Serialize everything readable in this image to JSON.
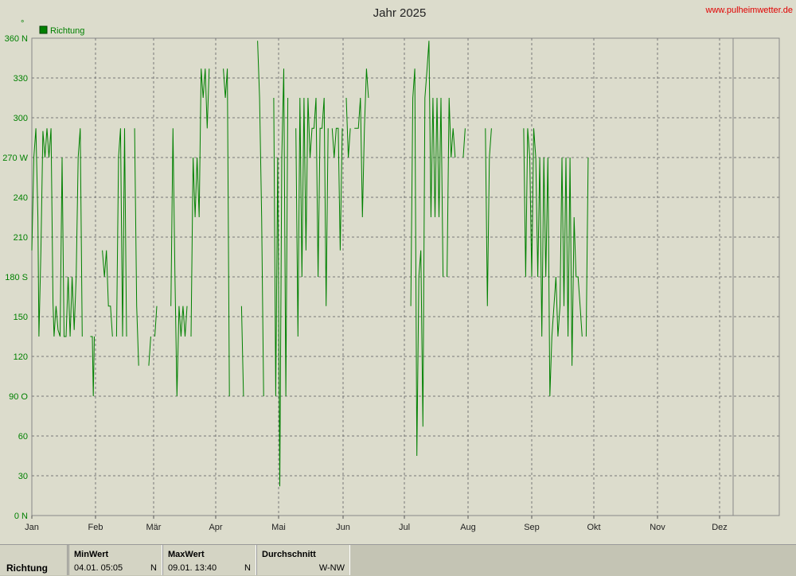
{
  "header": {
    "title": "Jahr 2025",
    "site": "www.pulheimwetter.de",
    "unit_mark": "°"
  },
  "legend": {
    "label": "Richtung",
    "color": "#008000"
  },
  "chart_data": {
    "type": "line",
    "title": "Jahr 2025",
    "xlabel": "",
    "ylabel": "",
    "ylim": [
      0,
      360
    ],
    "y_ticks": [
      "0  N",
      "30",
      "60",
      "90  O",
      "120",
      "150",
      "180 S",
      "210",
      "240",
      "270 W",
      "300",
      "330",
      "360 N"
    ],
    "x_ticks": [
      "Jan",
      "Feb",
      "Mär",
      "Apr",
      "Mai",
      "Jun",
      "Jul",
      "Aug",
      "Sep",
      "Okt",
      "Nov",
      "Dez"
    ],
    "grid": true,
    "series": [
      {
        "name": "Richtung",
        "color": "#008000",
        "points": [
          [
            0.0,
            200
          ],
          [
            1.0,
            270
          ],
          [
            2.0,
            292
          ],
          [
            3.0,
            225
          ],
          [
            3.5,
            135
          ],
          [
            4.5,
            200
          ],
          [
            5.5,
            290
          ],
          [
            6.5,
            270
          ],
          [
            7.5,
            292
          ],
          [
            8.5,
            270
          ],
          [
            9.5,
            292
          ],
          [
            10.5,
            160
          ],
          [
            11.0,
            135
          ],
          [
            12.0,
            158
          ],
          [
            13.0,
            140
          ],
          [
            14.0,
            135
          ],
          [
            15.0,
            270
          ],
          [
            16.0,
            135
          ],
          [
            17.0,
            135
          ],
          [
            18.0,
            180
          ],
          [
            19.0,
            135
          ],
          [
            20.0,
            180
          ],
          [
            21.0,
            140
          ],
          [
            22.0,
            180
          ],
          [
            23.0,
            270
          ],
          [
            24.0,
            292
          ],
          [
            25.0,
            135
          ],
          [
            27.0,
            135
          ],
          [
            29.0,
            135
          ],
          [
            30.0,
            135
          ],
          [
            30.5,
            90
          ],
          [
            31.0,
            135
          ],
          [
            33.0,
            135
          ],
          [
            35.0,
            200
          ],
          [
            36.0,
            180
          ],
          [
            37.0,
            200
          ],
          [
            38.0,
            158
          ],
          [
            39.0,
            158
          ],
          [
            40.0,
            135
          ],
          [
            42.0,
            135
          ],
          [
            43.0,
            270
          ],
          [
            44.0,
            292
          ],
          [
            45.0,
            135
          ],
          [
            46.0,
            292
          ],
          [
            47.0,
            135
          ],
          [
            51.0,
            292
          ],
          [
            52.0,
            158
          ],
          [
            53.0,
            113
          ],
          [
            58.0,
            113
          ],
          [
            59.0,
            135
          ],
          [
            61.0,
            135
          ],
          [
            62.0,
            158
          ],
          [
            69.0,
            158
          ],
          [
            70.0,
            292
          ],
          [
            71.0,
            180
          ],
          [
            72.0,
            90
          ],
          [
            73.0,
            158
          ],
          [
            74.0,
            135
          ],
          [
            75.0,
            158
          ],
          [
            76.0,
            135
          ],
          [
            77.0,
            158
          ],
          [
            79.0,
            135
          ],
          [
            80.0,
            270
          ],
          [
            81.0,
            225
          ],
          [
            82.0,
            270
          ],
          [
            83.0,
            225
          ],
          [
            84.0,
            337
          ],
          [
            85.0,
            315
          ],
          [
            86.0,
            337
          ],
          [
            87.0,
            292
          ],
          [
            88.0,
            337
          ],
          [
            95.0,
            337
          ],
          [
            96.0,
            315
          ],
          [
            97.0,
            337
          ],
          [
            98.0,
            90
          ],
          [
            104.0,
            158
          ],
          [
            105.0,
            90
          ],
          [
            108.0,
            158
          ],
          [
            110.0,
            90
          ],
          [
            112.0,
            358
          ],
          [
            113.0,
            315
          ],
          [
            114.0,
            225
          ],
          [
            115.0,
            90
          ],
          [
            118.0,
            90
          ],
          [
            120.0,
            315
          ],
          [
            121.0,
            90
          ],
          [
            122.0,
            270
          ],
          [
            123.0,
            22
          ],
          [
            124.0,
            270
          ],
          [
            125.0,
            337
          ],
          [
            126.0,
            90
          ],
          [
            127.0,
            315
          ],
          [
            129.0,
            292
          ],
          [
            131.0,
            292
          ],
          [
            132.0,
            135
          ],
          [
            133.0,
            315
          ],
          [
            134.0,
            180
          ],
          [
            135.0,
            315
          ],
          [
            136.0,
            200
          ],
          [
            137.0,
            315
          ],
          [
            138.0,
            270
          ],
          [
            139.0,
            292
          ],
          [
            140.0,
            292
          ],
          [
            141.0,
            315
          ],
          [
            142.0,
            180
          ],
          [
            143.0,
            292
          ],
          [
            144.0,
            292
          ],
          [
            145.0,
            315
          ],
          [
            146.0,
            158
          ],
          [
            147.0,
            292
          ],
          [
            149.0,
            292
          ],
          [
            150.0,
            270
          ],
          [
            151.0,
            292
          ],
          [
            152.0,
            292
          ],
          [
            153.0,
            200
          ],
          [
            154.0,
            292
          ],
          [
            156.0,
            315
          ],
          [
            157.0,
            270
          ],
          [
            158.0,
            292
          ],
          [
            160.0,
            292
          ],
          [
            161.0,
            292
          ],
          [
            162.0,
            292
          ],
          [
            163.0,
            315
          ],
          [
            164.0,
            225
          ],
          [
            165.0,
            292
          ],
          [
            166.0,
            337
          ],
          [
            167.0,
            315
          ],
          [
            170.0,
            315
          ],
          [
            172.0,
            315
          ],
          [
            184.0,
            315
          ],
          [
            186.0,
            315
          ],
          [
            188.0,
            158
          ],
          [
            189.0,
            315
          ],
          [
            190.0,
            337
          ],
          [
            191.0,
            45
          ],
          [
            192.0,
            180
          ],
          [
            193.0,
            200
          ],
          [
            194.0,
            67
          ],
          [
            195.0,
            315
          ],
          [
            196.0,
            335
          ],
          [
            197.0,
            358
          ],
          [
            198.0,
            225
          ],
          [
            199.0,
            315
          ],
          [
            200.0,
            225
          ],
          [
            201.0,
            315
          ],
          [
            202.0,
            225
          ],
          [
            203.0,
            315
          ],
          [
            204.0,
            180
          ],
          [
            206.0,
            180
          ],
          [
            207.0,
            315
          ],
          [
            208.0,
            270
          ],
          [
            209.0,
            292
          ],
          [
            210.0,
            270
          ],
          [
            214.0,
            270
          ],
          [
            215.0,
            292
          ],
          [
            225.0,
            292
          ],
          [
            226.0,
            158
          ],
          [
            227.0,
            270
          ],
          [
            228.0,
            292
          ],
          [
            244.0,
            292
          ],
          [
            245.0,
            180
          ],
          [
            246.0,
            292
          ],
          [
            247.0,
            270
          ],
          [
            248.0,
            180
          ],
          [
            249.0,
            292
          ],
          [
            250.0,
            270
          ],
          [
            251.0,
            180
          ],
          [
            252.0,
            270
          ],
          [
            253.0,
            135
          ],
          [
            254.0,
            270
          ],
          [
            255.0,
            180
          ],
          [
            256.0,
            270
          ],
          [
            257.0,
            90
          ],
          [
            258.0,
            135
          ],
          [
            259.0,
            158
          ],
          [
            260.0,
            180
          ],
          [
            261.0,
            135
          ],
          [
            262.0,
            158
          ],
          [
            263.0,
            270
          ],
          [
            264.0,
            158
          ],
          [
            265.0,
            270
          ],
          [
            266.0,
            135
          ],
          [
            267.0,
            270
          ],
          [
            268.0,
            113
          ],
          [
            269.0,
            225
          ],
          [
            270.0,
            180
          ],
          [
            271.0,
            180
          ],
          [
            272.0,
            158
          ],
          [
            273.0,
            135
          ],
          [
            275.0,
            135
          ],
          [
            276.0,
            270
          ]
        ]
      }
    ]
  },
  "footer": {
    "row_label": "Richtung",
    "min": {
      "header": "MinWert",
      "value": "04.01.  05:05",
      "dir": "N"
    },
    "max": {
      "header": "MaxWert",
      "value": "09.01.  13:40",
      "dir": "N"
    },
    "avg": {
      "header": "Durchschnitt",
      "value": "W-NW"
    }
  }
}
